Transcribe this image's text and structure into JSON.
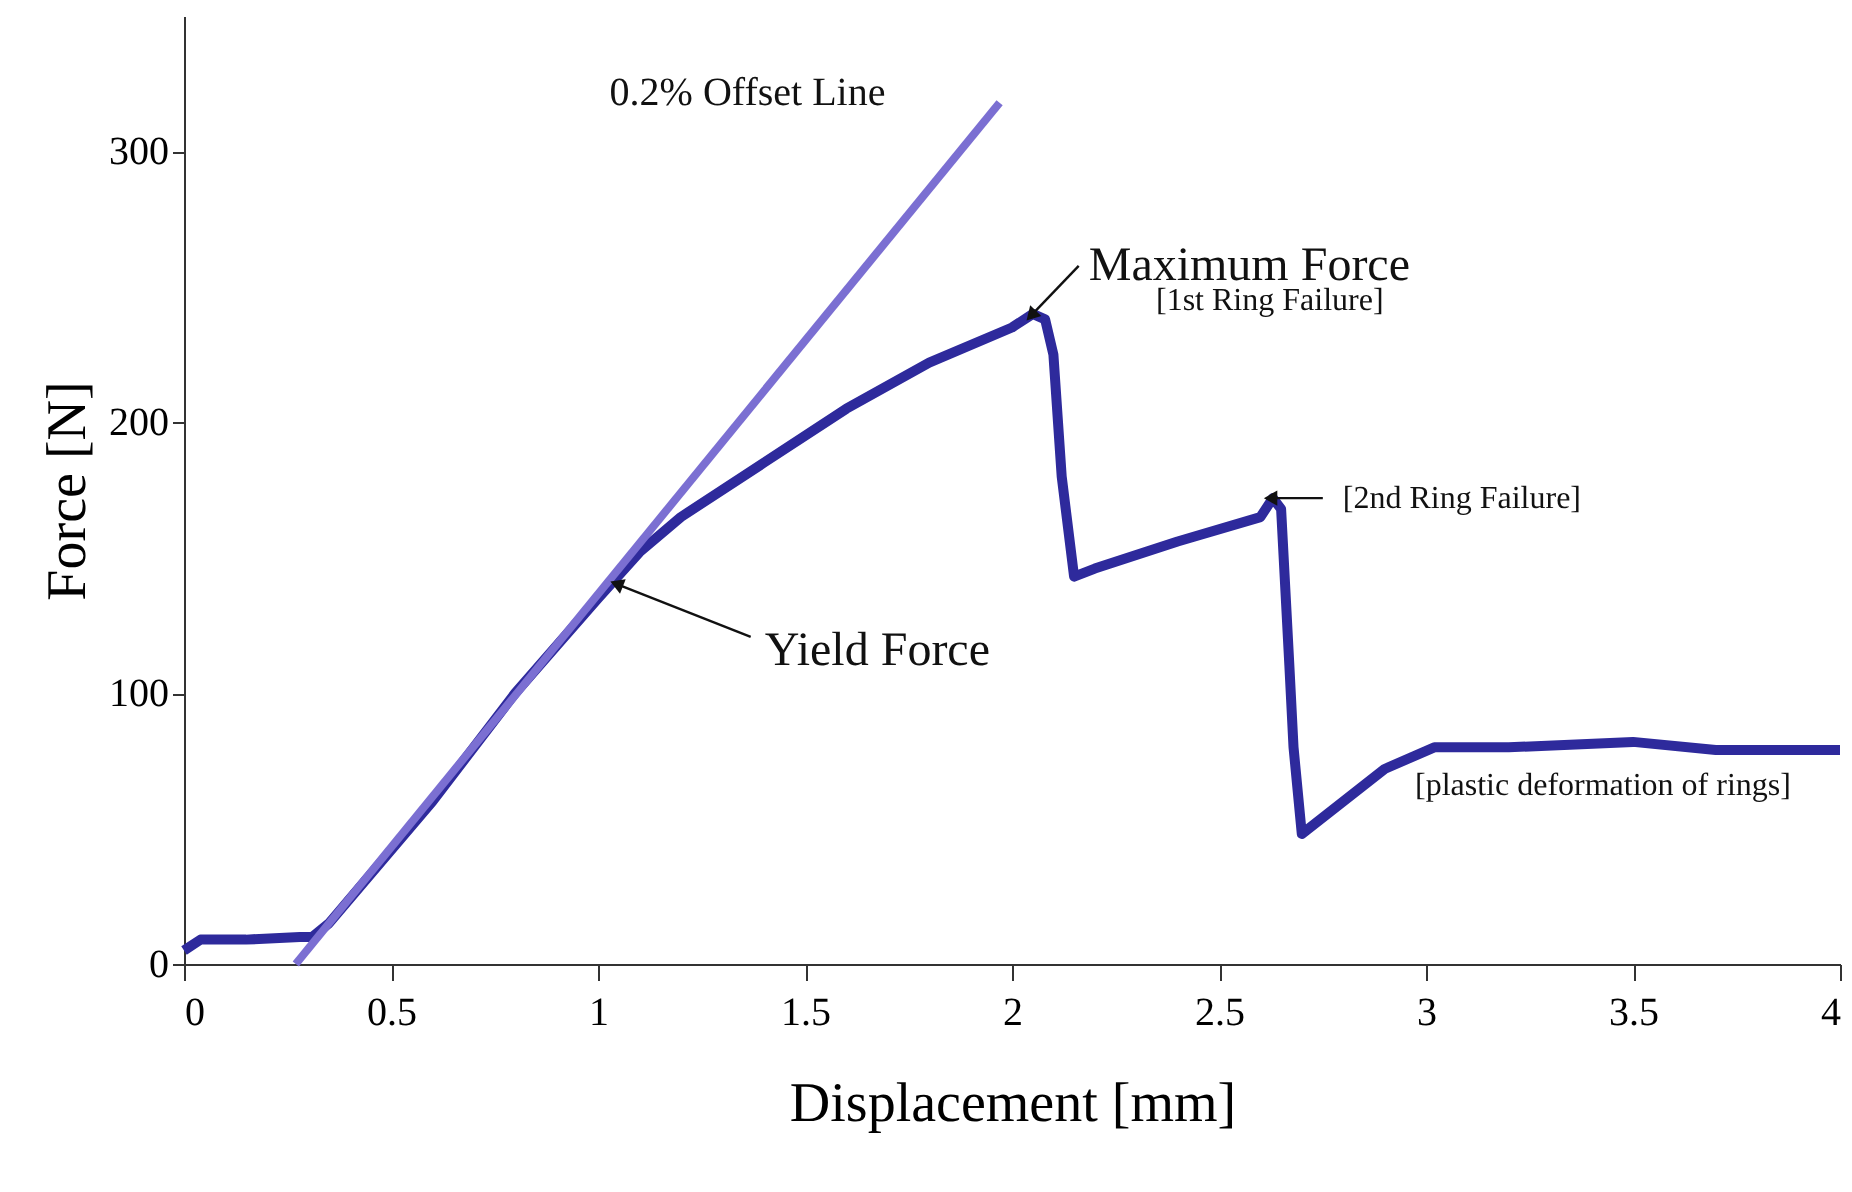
{
  "chart_data": {
    "type": "line",
    "xlabel": "Displacement [mm]",
    "ylabel": "Force [N]",
    "xlim": [
      0,
      4
    ],
    "ylim": [
      0,
      350
    ],
    "xticks": [
      0,
      0.5,
      1,
      1.5,
      2,
      2.5,
      3,
      3.5,
      4
    ],
    "yticks": [
      0,
      100,
      200,
      300
    ],
    "grid": false,
    "marker": "none",
    "line_style": "solid",
    "series": [
      {
        "color": "#2e2a9c",
        "x": [
          0,
          0.04,
          0.15,
          0.28,
          0.31,
          0.35,
          0.6,
          0.8,
          1.0,
          1.1,
          1.2,
          1.4,
          1.6,
          1.8,
          2.0,
          2.05,
          2.08,
          2.1,
          2.12,
          2.15,
          2.2,
          2.4,
          2.6,
          2.63,
          2.65,
          2.67,
          2.68,
          2.7,
          2.8,
          2.9,
          3.02,
          3.2,
          3.5,
          3.7,
          4.0
        ],
        "values": [
          5,
          9,
          9,
          10,
          10,
          15,
          60,
          100,
          135,
          152,
          165,
          185,
          205,
          222,
          235,
          240,
          238,
          225,
          180,
          143,
          146,
          156,
          165,
          172,
          168,
          110,
          80,
          48,
          60,
          72,
          80,
          80,
          82,
          79,
          79
        ]
      },
      {
        "type": "line",
        "color": "#7b6fd2",
        "x": [
          0.27,
          1.97
        ],
        "values": [
          0,
          318
        ]
      }
    ],
    "annotations": [
      {
        "text": "0.2% Offset Line",
        "x": 1.97,
        "y": 318
      },
      {
        "text": "Yield Force",
        "x": 1.05,
        "y": 140
      },
      {
        "text": "Maximum Force",
        "x": 2.05,
        "y": 240
      },
      "[1st Ring Failure]",
      {
        "text": "[2nd Ring Failure]",
        "x": 2.63,
        "y": 172
      },
      {
        "text": "[plastic deformation of rings]",
        "x": 3.5,
        "y": 80
      }
    ]
  }
}
